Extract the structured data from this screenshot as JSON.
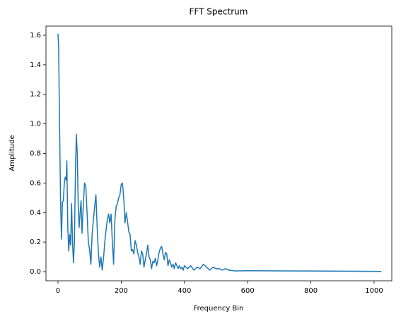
{
  "chart_data": {
    "type": "line",
    "title": "FFT Spectrum",
    "x_label": "Frequency Bin",
    "y_label": "Amplitude",
    "x": [
      0,
      2,
      5,
      8,
      11,
      14,
      17,
      20,
      23,
      26,
      28,
      31,
      34,
      37,
      40,
      43,
      46,
      49,
      52,
      55,
      58,
      61,
      64,
      67,
      70,
      73,
      76,
      80,
      84,
      88,
      92,
      96,
      100,
      104,
      108,
      112,
      116,
      120,
      124,
      128,
      132,
      136,
      140,
      144,
      148,
      152,
      156,
      160,
      164,
      168,
      172,
      176,
      180,
      184,
      188,
      192,
      196,
      200,
      204,
      208,
      212,
      216,
      220,
      224,
      228,
      232,
      236,
      240,
      244,
      248,
      252,
      256,
      260,
      264,
      268,
      272,
      276,
      280,
      284,
      288,
      292,
      296,
      300,
      304,
      308,
      312,
      316,
      320,
      324,
      328,
      332,
      336,
      340,
      344,
      348,
      352,
      356,
      360,
      364,
      368,
      372,
      376,
      380,
      384,
      388,
      392,
      396,
      400,
      410,
      420,
      430,
      440,
      450,
      460,
      470,
      480,
      490,
      500,
      510,
      520,
      530,
      540,
      560,
      600,
      700,
      800,
      900,
      1000,
      1023
    ],
    "series": [
      {
        "name": "Amplitude",
        "color": "#1f77b4",
        "values": [
          1.61,
          1.52,
          1.0,
          0.5,
          0.22,
          0.47,
          0.48,
          0.6,
          0.64,
          0.62,
          0.75,
          0.3,
          0.14,
          0.25,
          0.18,
          0.46,
          0.2,
          0.06,
          0.2,
          0.65,
          0.93,
          0.8,
          0.45,
          0.3,
          0.4,
          0.48,
          0.26,
          0.45,
          0.6,
          0.58,
          0.4,
          0.2,
          0.15,
          0.05,
          0.25,
          0.35,
          0.44,
          0.52,
          0.3,
          0.12,
          0.03,
          0.1,
          0.01,
          0.09,
          0.2,
          0.28,
          0.35,
          0.39,
          0.33,
          0.39,
          0.2,
          0.05,
          0.35,
          0.44,
          0.46,
          0.5,
          0.52,
          0.59,
          0.6,
          0.5,
          0.33,
          0.4,
          0.34,
          0.27,
          0.25,
          0.14,
          0.15,
          0.12,
          0.21,
          0.18,
          0.13,
          0.1,
          0.05,
          0.14,
          0.12,
          0.03,
          0.08,
          0.12,
          0.18,
          0.1,
          0.08,
          0.02,
          0.07,
          0.06,
          0.09,
          0.04,
          0.08,
          0.13,
          0.16,
          0.17,
          0.12,
          0.08,
          0.13,
          0.12,
          0.04,
          0.08,
          0.06,
          0.03,
          0.05,
          0.02,
          0.06,
          0.04,
          0.02,
          0.04,
          0.02,
          0.03,
          0.01,
          0.04,
          0.02,
          0.04,
          0.01,
          0.03,
          0.02,
          0.05,
          0.03,
          0.01,
          0.03,
          0.02,
          0.02,
          0.01,
          0.02,
          0.01,
          0.005,
          0.006,
          0.005,
          0.004,
          0.003,
          0.002,
          0.001
        ]
      }
    ],
    "xlim": [
      -38,
      1056
    ],
    "xticks": [
      0,
      200,
      400,
      600,
      800,
      1000
    ],
    "ylim": [
      -0.062,
      1.662
    ],
    "yticks": [
      {
        "value": 0,
        "label": "0.0"
      },
      {
        "value": 0.2,
        "label": "0.2"
      },
      {
        "value": 0.4,
        "label": "0.4"
      },
      {
        "value": 0.6,
        "label": "0.6"
      },
      {
        "value": 0.8,
        "label": "0.8"
      },
      {
        "value": 1,
        "label": "1.0"
      },
      {
        "value": 1.2,
        "label": "1.2"
      },
      {
        "value": 1.4,
        "label": "1.4"
      },
      {
        "value": 1.6,
        "label": "1.6"
      }
    ]
  }
}
